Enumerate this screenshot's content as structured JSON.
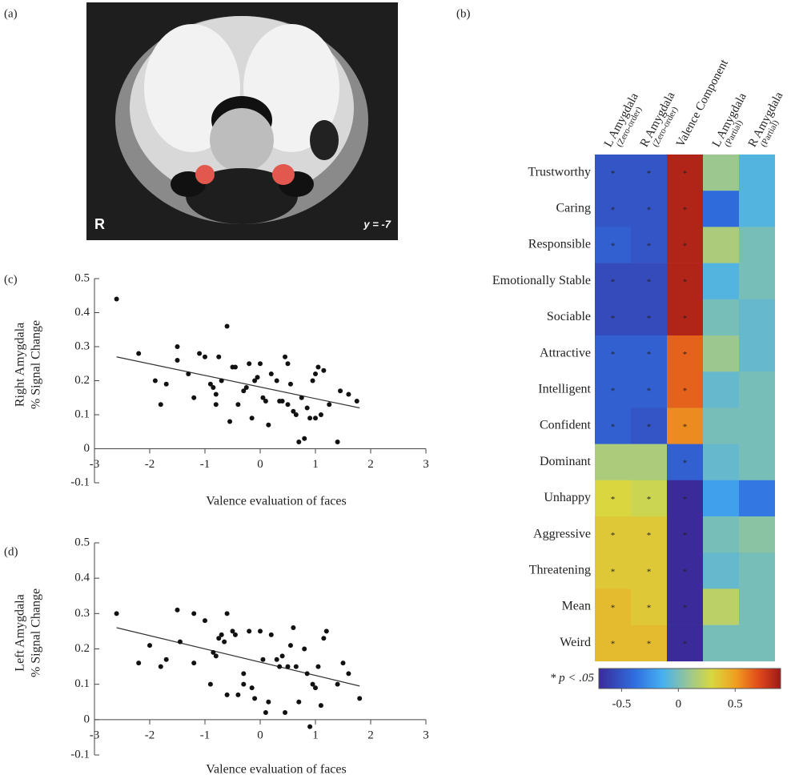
{
  "panel_labels": [
    "(a)",
    "(b)",
    "(c)",
    "(d)"
  ],
  "brain_image": {
    "hemisphere_label": "R",
    "slice_label": "y = -7"
  },
  "chart_data": [
    {
      "type": "scatter",
      "x_label": "Valence evaluation of faces",
      "y_label_lines": [
        "Right Amygdala",
        "% Signal Change"
      ],
      "color": "#111111",
      "x": [
        -2.6,
        -2.2,
        -1.9,
        -1.8,
        -1.7,
        -1.5,
        -1.5,
        -1.3,
        -1.2,
        -1.1,
        -1,
        -0.9,
        -0.85,
        -0.8,
        -0.8,
        -0.75,
        -0.7,
        -0.6,
        -0.55,
        -0.5,
        -0.45,
        -0.4,
        -0.3,
        -0.25,
        -0.2,
        -0.15,
        -0.1,
        -0.05,
        0,
        0.05,
        0.1,
        0.15,
        0.2,
        0.3,
        0.35,
        0.4,
        0.45,
        0.5,
        0.5,
        0.55,
        0.6,
        0.65,
        0.7,
        0.75,
        0.8,
        0.85,
        0.9,
        0.95,
        1,
        1,
        1.05,
        1.1,
        1.15,
        1.25,
        1.4,
        1.45,
        1.6,
        1.75
      ],
      "y": [
        0.44,
        0.28,
        0.2,
        0.13,
        0.19,
        0.3,
        0.26,
        0.22,
        0.15,
        0.28,
        0.27,
        0.19,
        0.18,
        0.16,
        0.13,
        0.27,
        0.2,
        0.36,
        0.08,
        0.24,
        0.24,
        0.13,
        0.17,
        0.18,
        0.25,
        0.09,
        0.2,
        0.21,
        0.25,
        0.15,
        0.14,
        0.07,
        0.22,
        0.2,
        0.14,
        0.14,
        0.27,
        0.13,
        0.25,
        0.19,
        0.11,
        0.1,
        0.02,
        0.15,
        0.03,
        0.12,
        0.09,
        0.2,
        0.22,
        0.09,
        0.24,
        0.1,
        0.23,
        0.13,
        0.02,
        0.17,
        0.16,
        0.14
      ],
      "trend_line": {
        "x": [
          -2.6,
          1.8
        ],
        "y": [
          0.27,
          0.12
        ]
      },
      "xlim": [
        -3,
        3
      ],
      "xticks": [
        -3,
        -2,
        -1,
        0,
        1,
        2,
        3
      ],
      "ylim": [
        -0.1,
        0.5
      ],
      "yticks": [
        -0.1,
        0,
        0.1,
        0.2,
        0.3,
        0.4,
        0.5
      ]
    },
    {
      "type": "scatter",
      "x_label": "Valence evaluation of faces",
      "y_label_lines": [
        "Left Amygdala",
        "% Signal Change"
      ],
      "color": "#111111",
      "x": [
        -2.6,
        -2.2,
        -2,
        -1.8,
        -1.7,
        -1.5,
        -1.45,
        -1.2,
        -1.2,
        -1,
        -0.9,
        -0.85,
        -0.8,
        -0.75,
        -0.7,
        -0.65,
        -0.6,
        -0.6,
        -0.5,
        -0.45,
        -0.4,
        -0.3,
        -0.3,
        -0.2,
        -0.15,
        -0.1,
        0,
        0.05,
        0.1,
        0.15,
        0.2,
        0.3,
        0.35,
        0.4,
        0.45,
        0.5,
        0.55,
        0.6,
        0.65,
        0.7,
        0.8,
        0.85,
        0.9,
        0.95,
        1,
        1.05,
        1.1,
        1.15,
        1.2,
        1.4,
        1.5,
        1.6,
        1.8
      ],
      "y": [
        0.3,
        0.16,
        0.21,
        0.15,
        0.17,
        0.31,
        0.22,
        0.3,
        0.16,
        0.28,
        0.1,
        0.19,
        0.18,
        0.23,
        0.24,
        0.22,
        0.3,
        0.07,
        0.25,
        0.24,
        0.07,
        0.13,
        0.1,
        0.25,
        0.09,
        0.06,
        0.25,
        0.17,
        0.02,
        0.05,
        0.24,
        0.17,
        0.15,
        0.18,
        0.02,
        0.15,
        0.21,
        0.26,
        0.15,
        0.05,
        0.2,
        0.13,
        -0.02,
        0.1,
        0.09,
        0.15,
        0.04,
        0.23,
        0.25,
        0.1,
        0.16,
        0.13,
        0.06
      ],
      "trend_line": {
        "x": [
          -2.6,
          1.8
        ],
        "y": [
          0.26,
          0.095
        ]
      },
      "xlim": [
        -3,
        3
      ],
      "xticks": [
        -3,
        -2,
        -1,
        0,
        1,
        2,
        3
      ],
      "ylim": [
        -0.1,
        0.5
      ],
      "yticks": [
        -0.1,
        0,
        0.1,
        0.2,
        0.3,
        0.4,
        0.5
      ]
    },
    {
      "type": "heatmap",
      "columns": [
        {
          "label": "L Amygdala",
          "sublabel": "(Zero-order)"
        },
        {
          "label": "R Amygdala",
          "sublabel": "(Zero-order)"
        },
        {
          "label": "Valence Component"
        },
        {
          "label": "L Amygdala",
          "sublabel": "(Partial)"
        },
        {
          "label": "R Amygdala",
          "sublabel": "(Partial)"
        }
      ],
      "rows": [
        "Trustworthy",
        "Caring",
        "Responsible",
        "Emotionally Stable",
        "Sociable",
        "Attractive",
        "Intelligent",
        "Confident",
        "Dominant",
        "Unhappy",
        "Aggressive",
        "Threatening",
        "Mean",
        "Weird"
      ],
      "values": [
        [
          -0.5,
          -0.5,
          0.85,
          0.1,
          -0.1
        ],
        [
          -0.5,
          -0.5,
          0.85,
          -0.4,
          -0.1
        ],
        [
          -0.45,
          -0.5,
          0.85,
          0.15,
          0
        ],
        [
          -0.55,
          -0.55,
          0.85,
          -0.1,
          0
        ],
        [
          -0.55,
          -0.55,
          0.85,
          0,
          -0.05
        ],
        [
          -0.45,
          -0.45,
          0.65,
          0.1,
          -0.05
        ],
        [
          -0.45,
          -0.45,
          0.65,
          -0.05,
          0
        ],
        [
          -0.45,
          -0.5,
          0.55,
          0,
          0
        ],
        [
          0.15,
          0.15,
          -0.45,
          -0.05,
          0
        ],
        [
          0.3,
          0.25,
          -0.8,
          -0.2,
          -0.35
        ],
        [
          0.35,
          0.35,
          -0.8,
          0,
          0.05
        ],
        [
          0.35,
          0.35,
          -0.8,
          -0.05,
          0
        ],
        [
          0.4,
          0.35,
          -0.8,
          0.2,
          0
        ],
        [
          0.4,
          0.4,
          -0.8,
          0,
          0
        ]
      ],
      "significant": [
        [
          true,
          true,
          true,
          false,
          false
        ],
        [
          true,
          true,
          true,
          false,
          false
        ],
        [
          true,
          true,
          true,
          false,
          false
        ],
        [
          true,
          true,
          true,
          false,
          false
        ],
        [
          true,
          true,
          true,
          false,
          false
        ],
        [
          true,
          true,
          true,
          false,
          false
        ],
        [
          true,
          true,
          true,
          false,
          false
        ],
        [
          true,
          true,
          true,
          false,
          false
        ],
        [
          false,
          false,
          true,
          false,
          false
        ],
        [
          true,
          true,
          true,
          false,
          false
        ],
        [
          true,
          true,
          true,
          false,
          false
        ],
        [
          true,
          true,
          true,
          false,
          false
        ],
        [
          true,
          true,
          true,
          false,
          false
        ],
        [
          true,
          true,
          true,
          false,
          false
        ]
      ],
      "significance_marker": "*",
      "legend_note": "* p < .05",
      "clim": [
        -0.7,
        0.9
      ],
      "colorbar_ticks": [
        -0.5,
        0,
        0.5
      ]
    }
  ]
}
